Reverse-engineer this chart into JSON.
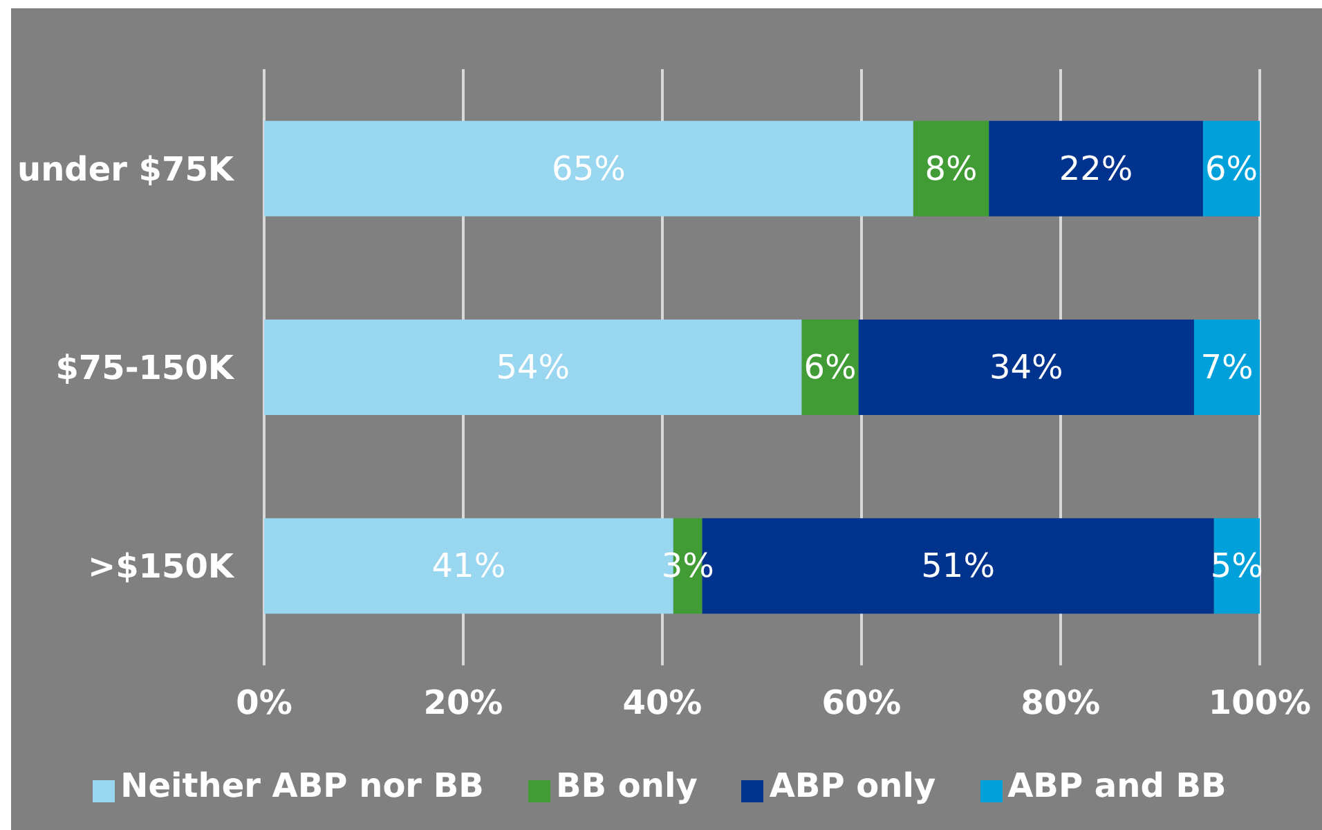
{
  "chart_data": {
    "type": "bar",
    "orientation": "horizontal",
    "stacked": true,
    "categories": [
      "under $75K",
      "$75-150K",
      ">$150K"
    ],
    "series": [
      {
        "name": "Neither ABP nor BB",
        "color": "#99d6ef",
        "values": [
          65.2,
          54.0,
          41.1
        ],
        "value_labels": [
          "65%",
          "54%",
          "41%"
        ]
      },
      {
        "name": "BB only",
        "color": "#419c35",
        "values": [
          7.6,
          5.7,
          2.9
        ],
        "value_labels": [
          "8%",
          "6%",
          "3%"
        ]
      },
      {
        "name": "ABP only",
        "color": "#00338d",
        "values": [
          21.5,
          33.7,
          51.4
        ],
        "value_labels": [
          "22%",
          "34%",
          "51%"
        ]
      },
      {
        "name": "ABP and BB",
        "color": "#00a1db",
        "values": [
          5.7,
          6.6,
          4.6
        ],
        "value_labels": [
          "6%",
          "7%",
          "5%"
        ]
      }
    ],
    "xlim": [
      0,
      100
    ],
    "xticks": [
      {
        "value": 0,
        "label": "0%"
      },
      {
        "value": 20,
        "label": "20%"
      },
      {
        "value": 40,
        "label": "40%"
      },
      {
        "value": 60,
        "label": "60%"
      },
      {
        "value": 80,
        "label": "80%"
      },
      {
        "value": 100,
        "label": "100%"
      }
    ],
    "grid": "x",
    "legend": "bottom"
  }
}
